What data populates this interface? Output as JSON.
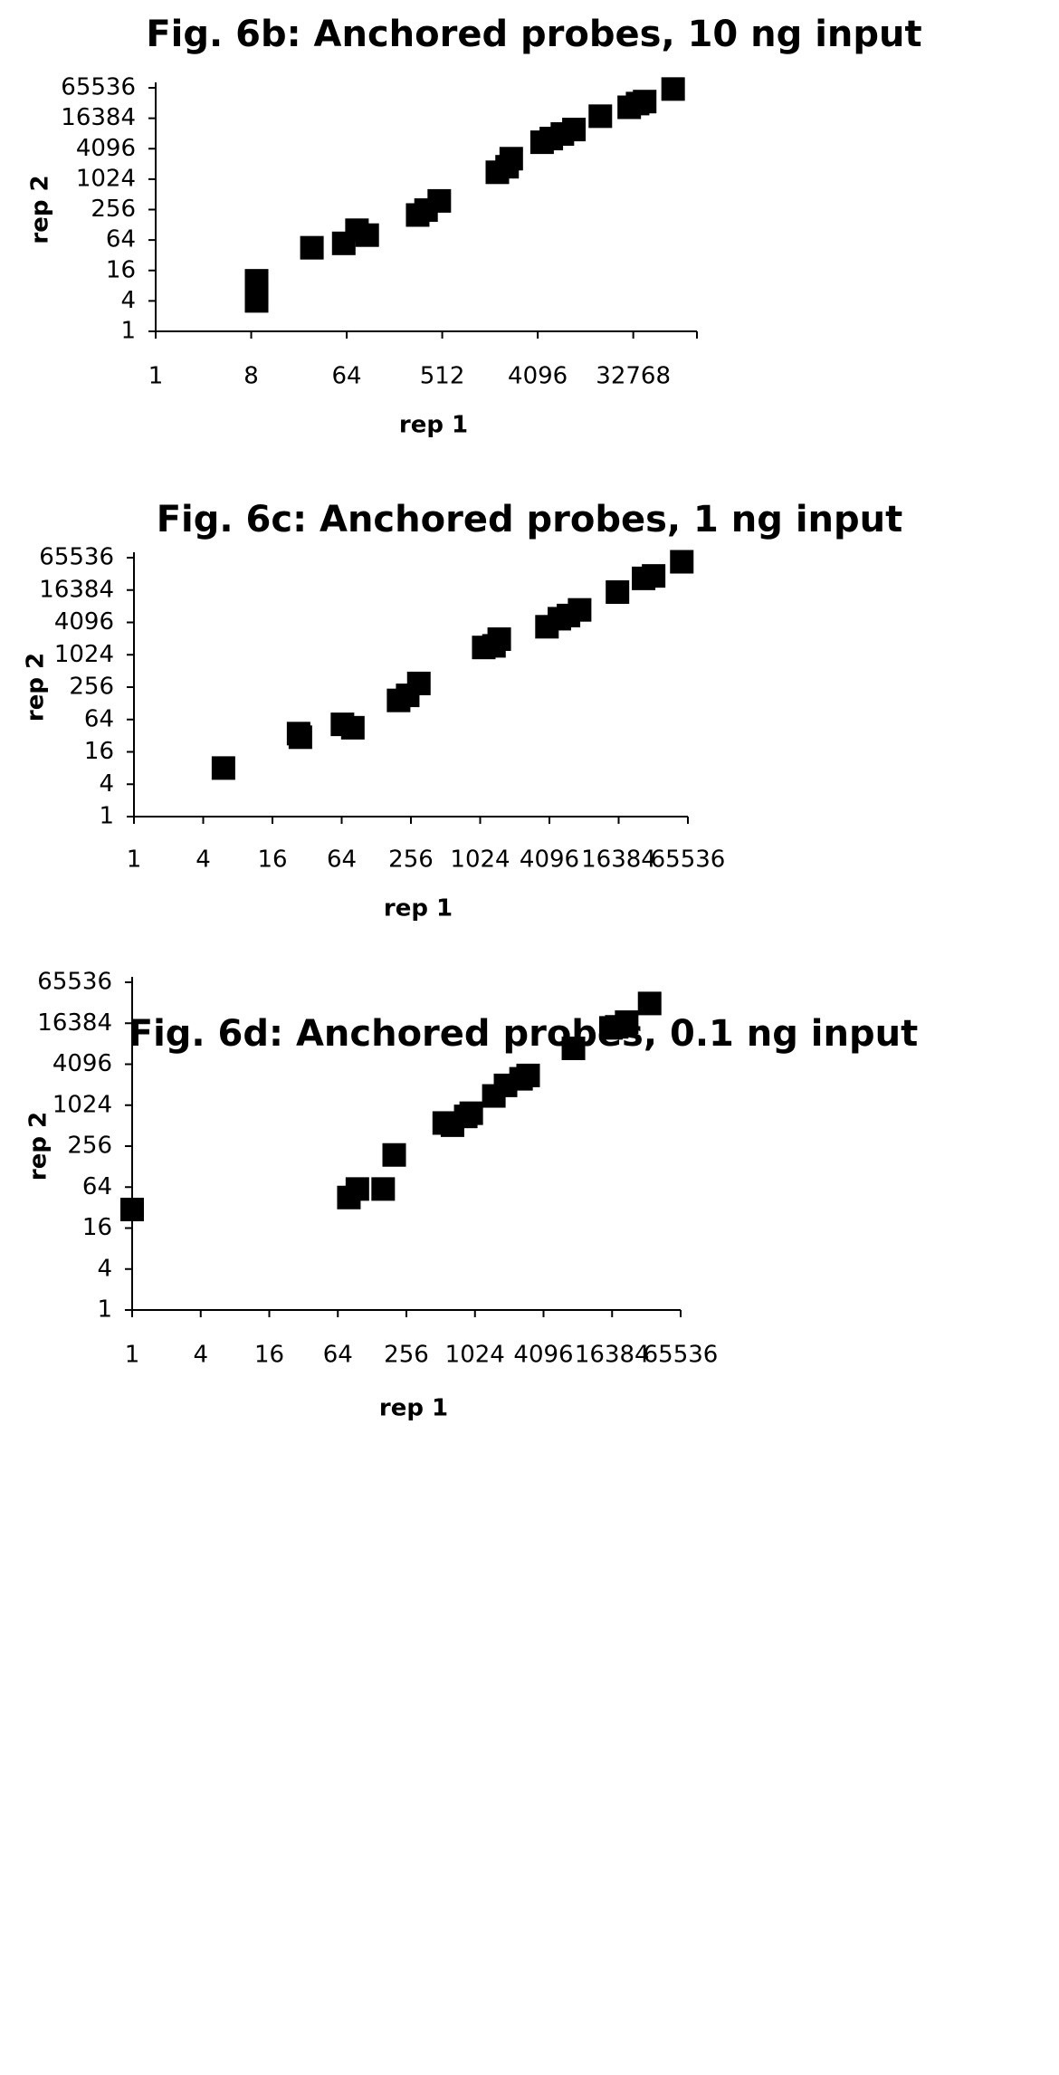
{
  "chart_data": [
    {
      "type": "scatter",
      "title": "Fig. 6b: Anchored probes, 10 ng input",
      "xlabel": "rep 1",
      "ylabel": "rep 2",
      "x_scale": "log2",
      "y_scale": "log2",
      "xlim": [
        1,
        131072
      ],
      "ylim": [
        1,
        65536
      ],
      "x_ticks": [
        1,
        8,
        64,
        512,
        4096,
        32768
      ],
      "y_ticks": [
        1,
        4,
        16,
        64,
        256,
        1024,
        4096,
        16384,
        65536
      ],
      "x_tick_labels": [
        "1",
        "8",
        "64",
        "512",
        "4096",
        "32768"
      ],
      "y_tick_labels": [
        "1",
        "4",
        "16",
        "64",
        "256",
        "1024",
        "4096",
        "16384",
        "65536"
      ],
      "grid": false,
      "points": [
        {
          "x": 9,
          "y": 10
        },
        {
          "x": 9,
          "y": 6
        },
        {
          "x": 9,
          "y": 4
        },
        {
          "x": 30,
          "y": 45
        },
        {
          "x": 60,
          "y": 55
        },
        {
          "x": 80,
          "y": 100
        },
        {
          "x": 100,
          "y": 80
        },
        {
          "x": 300,
          "y": 200
        },
        {
          "x": 360,
          "y": 250
        },
        {
          "x": 480,
          "y": 380
        },
        {
          "x": 1700,
          "y": 1400
        },
        {
          "x": 2100,
          "y": 1800
        },
        {
          "x": 2300,
          "y": 2600
        },
        {
          "x": 4500,
          "y": 5500
        },
        {
          "x": 5500,
          "y": 6500
        },
        {
          "x": 7000,
          "y": 8000
        },
        {
          "x": 9000,
          "y": 9800
        },
        {
          "x": 16000,
          "y": 18000
        },
        {
          "x": 30000,
          "y": 27000
        },
        {
          "x": 36000,
          "y": 32000
        },
        {
          "x": 42000,
          "y": 35000
        },
        {
          "x": 78000,
          "y": 62000
        }
      ]
    },
    {
      "type": "scatter",
      "title": "Fig. 6c: Anchored probes, 1 ng input",
      "xlabel": "rep 1",
      "ylabel": "rep 2",
      "x_scale": "log2",
      "y_scale": "log2",
      "xlim": [
        1,
        65536
      ],
      "ylim": [
        1,
        65536
      ],
      "x_ticks": [
        1,
        4,
        16,
        64,
        256,
        1024,
        4096,
        16384,
        65536
      ],
      "y_ticks": [
        1,
        4,
        16,
        64,
        256,
        1024,
        4096,
        16384,
        65536
      ],
      "x_tick_labels": [
        "1",
        "4",
        "16",
        "64",
        "256",
        "1024",
        "4096",
        "16384",
        "65536"
      ],
      "y_tick_labels": [
        "1",
        "4",
        "16",
        "64",
        "256",
        "1024",
        "4096",
        "16384",
        "65536"
      ],
      "grid": false,
      "points": [
        {
          "x": 6,
          "y": 8
        },
        {
          "x": 27,
          "y": 35
        },
        {
          "x": 28,
          "y": 30
        },
        {
          "x": 65,
          "y": 52
        },
        {
          "x": 80,
          "y": 45
        },
        {
          "x": 200,
          "y": 145
        },
        {
          "x": 240,
          "y": 180
        },
        {
          "x": 300,
          "y": 300
        },
        {
          "x": 1100,
          "y": 1400
        },
        {
          "x": 1350,
          "y": 1500
        },
        {
          "x": 1500,
          "y": 2000
        },
        {
          "x": 3900,
          "y": 3400
        },
        {
          "x": 5000,
          "y": 4800
        },
        {
          "x": 6000,
          "y": 5500
        },
        {
          "x": 7500,
          "y": 7000
        },
        {
          "x": 16000,
          "y": 15000
        },
        {
          "x": 27000,
          "y": 27000
        },
        {
          "x": 33000,
          "y": 30000
        },
        {
          "x": 58000,
          "y": 55000
        }
      ]
    },
    {
      "type": "scatter",
      "title": "Fig. 6d: Anchored probes, 0.1 ng input",
      "xlabel": "rep 1",
      "ylabel": "rep 2",
      "x_scale": "log2",
      "y_scale": "log2",
      "xlim": [
        1,
        65536
      ],
      "ylim": [
        1,
        65536
      ],
      "x_ticks": [
        1,
        4,
        16,
        64,
        256,
        1024,
        4096,
        16384,
        65536
      ],
      "y_ticks": [
        1,
        4,
        16,
        64,
        256,
        1024,
        4096,
        16384,
        65536
      ],
      "x_tick_labels": [
        "1",
        "4",
        "16",
        "64",
        "256",
        "1024",
        "4096",
        "16384",
        "65536"
      ],
      "y_tick_labels": [
        "1",
        "4",
        "16",
        "64",
        "256",
        "1024",
        "4096",
        "16384",
        "65536"
      ],
      "grid": false,
      "points": [
        {
          "x": 1,
          "y": 30
        },
        {
          "x": 80,
          "y": 45
        },
        {
          "x": 95,
          "y": 60
        },
        {
          "x": 160,
          "y": 60
        },
        {
          "x": 200,
          "y": 190
        },
        {
          "x": 550,
          "y": 560
        },
        {
          "x": 650,
          "y": 520
        },
        {
          "x": 850,
          "y": 700
        },
        {
          "x": 950,
          "y": 780
        },
        {
          "x": 1500,
          "y": 1400
        },
        {
          "x": 1900,
          "y": 2000
        },
        {
          "x": 2600,
          "y": 2500
        },
        {
          "x": 3000,
          "y": 2800
        },
        {
          "x": 7500,
          "y": 7000
        },
        {
          "x": 16000,
          "y": 14000
        },
        {
          "x": 18000,
          "y": 14500
        },
        {
          "x": 22000,
          "y": 17000
        },
        {
          "x": 35000,
          "y": 32000
        }
      ]
    }
  ]
}
